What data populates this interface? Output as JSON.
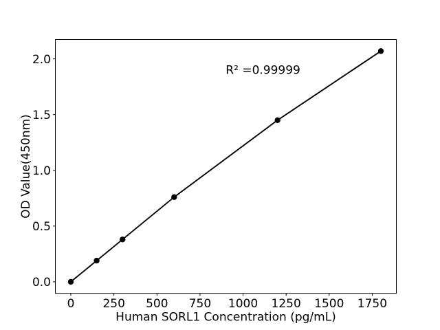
{
  "chart_data": {
    "type": "line",
    "title": "",
    "xlabel": "Human SORL1 Concentration (pg/mL)",
    "ylabel": "OD Value(450nm)",
    "annotation": {
      "text": "R² =0.99999",
      "x": 1116,
      "y": 1.865
    },
    "x": [
      0,
      150,
      300,
      600,
      1200,
      1800
    ],
    "y": [
      0.0,
      0.19,
      0.38,
      0.76,
      1.45,
      2.07
    ],
    "xlim": [
      -90,
      1890
    ],
    "ylim": [
      -0.1035,
      2.1735
    ],
    "xticks": {
      "values": [
        0,
        250,
        500,
        750,
        1000,
        1250,
        1500,
        1750
      ],
      "labels": [
        "0",
        "250",
        "500",
        "750",
        "1000",
        "1250",
        "1500",
        "1750"
      ]
    },
    "yticks": {
      "values": [
        0,
        0.5,
        1.0,
        1.5,
        2.0
      ],
      "labels": [
        "0.0",
        "0.5",
        "1.0",
        "1.5",
        "2.0"
      ]
    },
    "grid": false,
    "legend_position": "none",
    "line_color": "#000000",
    "marker": "circle",
    "marker_color": "#000000",
    "background_color": "#ffffff"
  }
}
